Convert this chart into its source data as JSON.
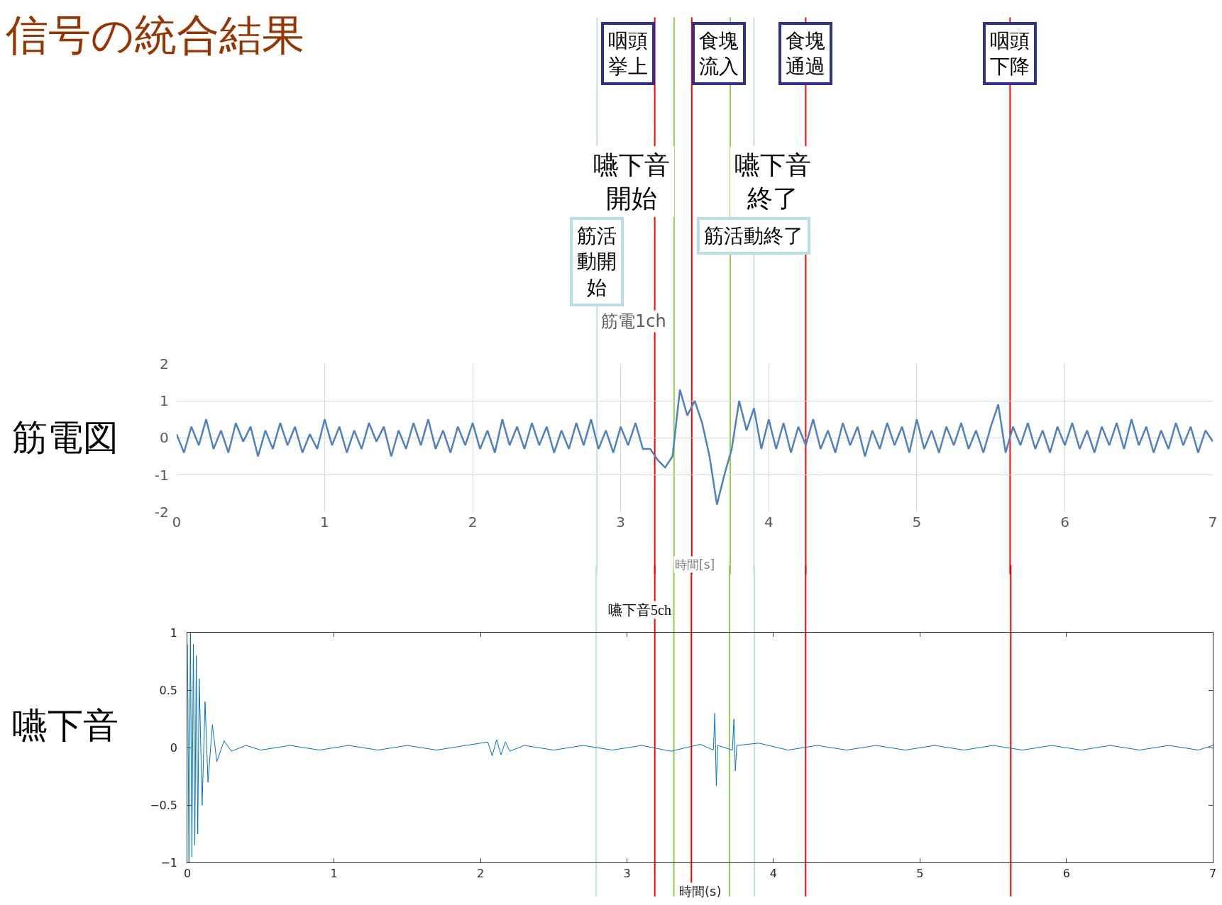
{
  "chart_data": [
    {
      "type": "line",
      "title": "筋電1ch",
      "xlabel": "時間[s]",
      "annotations": [
        "信号の統合結果",
        "筋電図"
      ],
      "x": [
        0,
        0.05,
        0.1,
        0.15,
        0.2,
        0.25,
        0.3,
        0.35,
        0.4,
        0.45,
        0.5,
        0.55,
        0.6,
        0.65,
        0.7,
        0.75,
        0.8,
        0.85,
        0.9,
        0.95,
        1,
        1.05,
        1.1,
        1.15,
        1.2,
        1.25,
        1.3,
        1.35,
        1.4,
        1.45,
        1.5,
        1.55,
        1.6,
        1.65,
        1.7,
        1.75,
        1.8,
        1.85,
        1.9,
        1.95,
        2,
        2.05,
        2.1,
        2.15,
        2.2,
        2.25,
        2.3,
        2.35,
        2.4,
        2.45,
        2.5,
        2.55,
        2.6,
        2.65,
        2.7,
        2.75,
        2.8,
        2.85,
        2.9,
        2.95,
        3,
        3.05,
        3.1,
        3.15,
        3.2,
        3.25,
        3.3,
        3.35,
        3.4,
        3.45,
        3.5,
        3.55,
        3.6,
        3.65,
        3.7,
        3.75,
        3.8,
        3.85,
        3.9,
        3.95,
        4,
        4.05,
        4.1,
        4.15,
        4.2,
        4.25,
        4.3,
        4.35,
        4.4,
        4.45,
        4.5,
        4.55,
        4.6,
        4.65,
        4.7,
        4.75,
        4.8,
        4.85,
        4.9,
        4.95,
        5,
        5.05,
        5.1,
        5.15,
        5.2,
        5.25,
        5.3,
        5.35,
        5.4,
        5.45,
        5.5,
        5.55,
        5.6,
        5.65,
        5.7,
        5.75,
        5.8,
        5.85,
        5.9,
        5.95,
        6,
        6.05,
        6.1,
        6.15,
        6.2,
        6.25,
        6.3,
        6.35,
        6.4,
        6.45,
        6.5,
        6.55,
        6.6,
        6.65,
        6.7,
        6.75,
        6.8,
        6.85,
        6.9,
        6.95,
        7
      ],
      "series": [
        {
          "color": "#4f81bd",
          "values": [
            0.1,
            -0.4,
            0.3,
            -0.2,
            0.5,
            -0.3,
            0.2,
            -0.4,
            0.4,
            -0.1,
            0.3,
            -0.5,
            0.2,
            -0.3,
            0.4,
            -0.2,
            0.3,
            -0.4,
            0.1,
            -0.3,
            0.5,
            -0.2,
            0.3,
            -0.4,
            0.2,
            -0.3,
            0.4,
            -0.1,
            0.3,
            -0.5,
            0.2,
            -0.3,
            0.4,
            -0.2,
            0.5,
            -0.3,
            0.2,
            -0.4,
            0.3,
            -0.2,
            0.4,
            -0.3,
            0.2,
            -0.4,
            0.5,
            -0.2,
            0.3,
            -0.3,
            0.4,
            -0.2,
            0.3,
            -0.4,
            0.2,
            -0.3,
            0.4,
            -0.2,
            0.5,
            -0.3,
            0.2,
            -0.4,
            0.3,
            -0.2,
            0.4,
            -0.3,
            -0.3,
            -0.6,
            -0.8,
            -0.5,
            1.3,
            0.6,
            1.0,
            0.4,
            -0.5,
            -1.8,
            -1.0,
            -0.3,
            1.0,
            0.2,
            0.8,
            -0.3,
            0.5,
            -0.3,
            0.4,
            -0.4,
            0.3,
            -0.2,
            0.5,
            -0.3,
            0.2,
            -0.4,
            0.4,
            -0.2,
            0.3,
            -0.5,
            0.2,
            -0.3,
            0.4,
            -0.2,
            0.3,
            -0.4,
            0.5,
            -0.3,
            0.2,
            -0.4,
            0.3,
            -0.2,
            0.4,
            -0.3,
            0.2,
            -0.4,
            0.3,
            0.9,
            -0.4,
            0.3,
            -0.2,
            0.4,
            -0.3,
            0.2,
            -0.4,
            0.3,
            -0.2,
            0.4,
            -0.3,
            0.2,
            -0.4,
            0.3,
            -0.2,
            0.4,
            -0.3,
            0.5,
            -0.2,
            0.3,
            -0.4,
            0.2,
            -0.3,
            0.4,
            -0.2,
            0.3,
            -0.4,
            0.2,
            -0.1
          ]
        }
      ],
      "xlim": [
        0,
        7
      ],
      "xticks": [
        0,
        1,
        2,
        3,
        4,
        5,
        6,
        7
      ],
      "ylim": [
        -2,
        2
      ],
      "yticks": [
        -2,
        -1,
        0,
        1,
        2
      ],
      "grid": true,
      "ref_lines": [
        {
          "axis": "x",
          "value": 3.23,
          "label": "咽頭挙上",
          "color": "#ff0000"
        },
        {
          "axis": "x",
          "value": 3.48,
          "label": "食塊流入",
          "color": "#ff0000"
        },
        {
          "axis": "x",
          "value": 4.25,
          "label": "食塊通過",
          "color": "#ff0000"
        },
        {
          "axis": "x",
          "value": 5.63,
          "label": "咽頭下降",
          "color": "#ff0000"
        },
        {
          "axis": "x",
          "value": 3.36,
          "label": "嚥下音開始",
          "color": "#92d050"
        },
        {
          "axis": "x",
          "value": 3.74,
          "label": "嚥下音終了",
          "color": "#92d050"
        },
        {
          "axis": "x",
          "value": 2.84,
          "label": "筋活動開始",
          "color": "#c5e0e6"
        },
        {
          "axis": "x",
          "value": 3.9,
          "label": "筋活動終了",
          "color": "#c5e0e6"
        }
      ]
    },
    {
      "type": "line",
      "title": "嚥下音5ch",
      "xlabel": "時間(s)",
      "annotations": [
        "嚥下音"
      ],
      "x": [
        0,
        0.01,
        0.02,
        0.03,
        0.04,
        0.05,
        0.06,
        0.07,
        0.08,
        0.1,
        0.12,
        0.14,
        0.17,
        0.2,
        0.25,
        0.3,
        0.4,
        0.5,
        0.7,
        0.9,
        1.1,
        1.3,
        1.5,
        1.7,
        1.9,
        2.05,
        2.08,
        2.11,
        2.14,
        2.17,
        2.2,
        2.3,
        2.5,
        2.7,
        2.9,
        3.1,
        3.3,
        3.5,
        3.59,
        3.6,
        3.61,
        3.62,
        3.72,
        3.73,
        3.74,
        3.75,
        3.9,
        4.1,
        4.3,
        4.5,
        4.7,
        4.9,
        5.1,
        5.3,
        5.5,
        5.7,
        5.9,
        6.1,
        6.3,
        6.5,
        6.7,
        6.9,
        7
      ],
      "series": [
        {
          "color": "#0072bd",
          "values": [
            0.9,
            -1,
            1,
            -0.95,
            0.9,
            -0.85,
            0.8,
            -0.75,
            0.6,
            -0.5,
            0.4,
            -0.3,
            0.2,
            -0.12,
            0.06,
            -0.03,
            0.02,
            -0.02,
            0.02,
            -0.02,
            0.02,
            -0.02,
            0.02,
            -0.02,
            0.02,
            0.05,
            -0.07,
            0.07,
            -0.06,
            0.05,
            -0.03,
            0.02,
            -0.02,
            0.02,
            -0.02,
            0.02,
            -0.03,
            0.03,
            -0.02,
            0.3,
            -0.33,
            0.02,
            -0.02,
            0.25,
            -0.2,
            0.02,
            0.04,
            -0.02,
            0.02,
            -0.02,
            0.02,
            -0.02,
            0.02,
            -0.02,
            0.02,
            -0.02,
            0.02,
            -0.02,
            0.02,
            -0.02,
            0.02,
            -0.02,
            0.02
          ]
        }
      ],
      "xlim": [
        0,
        7
      ],
      "xticks": [
        0,
        1,
        2,
        3,
        4,
        5,
        6,
        7
      ],
      "ylim": [
        -1,
        1
      ],
      "yticks": [
        {
          "value": -1,
          "label": "−1"
        },
        {
          "value": -0.5,
          "label": "−0.5"
        },
        0,
        0.5,
        1
      ],
      "grid": false,
      "ref_lines": [
        {
          "axis": "x",
          "value": 3.19,
          "color": "#ff0000"
        },
        {
          "axis": "x",
          "value": 3.44,
          "color": "#ff0000"
        },
        {
          "axis": "x",
          "value": 4.22,
          "color": "#ff0000"
        },
        {
          "axis": "x",
          "value": 5.62,
          "color": "#ff0000"
        },
        {
          "axis": "x",
          "value": 3.32,
          "color": "#92d050"
        },
        {
          "axis": "x",
          "value": 3.7,
          "color": "#92d050"
        },
        {
          "axis": "x",
          "value": 2.79,
          "color": "#c5e0e6"
        },
        {
          "axis": "x",
          "value": 3.87,
          "color": "#c5e0e6"
        }
      ]
    }
  ]
}
